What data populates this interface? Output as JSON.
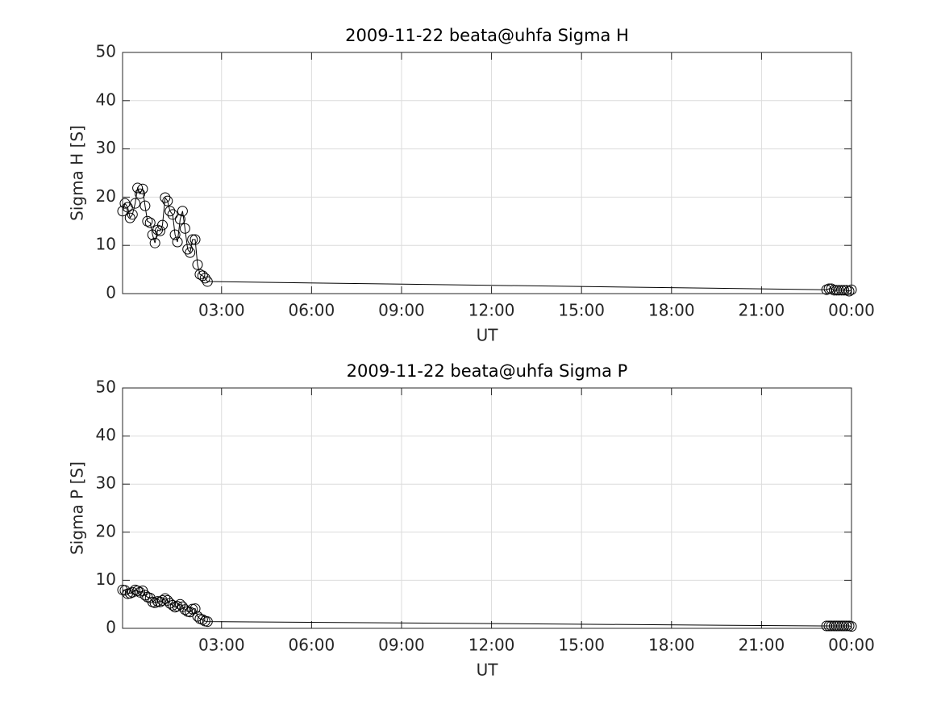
{
  "chart_data": [
    {
      "type": "line",
      "title": "2009-11-22  beata@uhfa Sigma H",
      "xlabel": "UT",
      "ylabel": "Sigma H [S]",
      "x": [
        -0.3,
        -0.22,
        -0.13,
        -0.05,
        0.03,
        0.12,
        0.2,
        0.28,
        0.37,
        0.45,
        0.53,
        0.62,
        0.7,
        0.78,
        0.87,
        0.95,
        1.03,
        1.12,
        1.2,
        1.28,
        1.37,
        1.45,
        1.53,
        1.62,
        1.7,
        1.78,
        1.87,
        1.95,
        2.03,
        2.12,
        2.2,
        2.28,
        2.37,
        2.45,
        2.53,
        23.17,
        23.25,
        23.33,
        23.42,
        23.5,
        23.58,
        23.67,
        23.75,
        23.83,
        23.92,
        24
      ],
      "values": [
        17.1,
        18.7,
        17.9,
        15.7,
        16.4,
        18.7,
        21.9,
        20.7,
        21.7,
        18.2,
        15.0,
        14.7,
        12.2,
        10.5,
        13.2,
        13.0,
        14.2,
        19.9,
        19.2,
        17.1,
        16.4,
        12.2,
        10.7,
        15.4,
        17.1,
        13.5,
        9.2,
        8.5,
        11.2,
        11.2,
        6.0,
        4.0,
        3.7,
        3.2,
        2.5,
        0.8,
        1.0,
        1.0,
        0.7,
        0.7,
        0.7,
        0.7,
        0.7,
        0.7,
        0.5,
        0.8
      ],
      "color": "#000000",
      "marker": "circle",
      "xlim": [
        -0.3,
        24
      ],
      "xticks": [
        {
          "value": 3,
          "label": "03:00"
        },
        {
          "value": 6,
          "label": "06:00"
        },
        {
          "value": 9,
          "label": "09:00"
        },
        {
          "value": 12,
          "label": "12:00"
        },
        {
          "value": 15,
          "label": "15:00"
        },
        {
          "value": 18,
          "label": "18:00"
        },
        {
          "value": 21,
          "label": "21:00"
        },
        {
          "value": 24,
          "label": "00:00"
        }
      ],
      "ylim": [
        0,
        50
      ],
      "yticks": [
        0,
        10,
        20,
        30,
        40,
        50
      ],
      "grid": true
    },
    {
      "type": "line",
      "title": "2009-11-22  beata@uhfa Sigma P",
      "xlabel": "UT",
      "ylabel": "Sigma P [S]",
      "x": [
        -0.3,
        -0.22,
        -0.13,
        -0.05,
        0.03,
        0.12,
        0.2,
        0.28,
        0.37,
        0.45,
        0.53,
        0.62,
        0.7,
        0.78,
        0.87,
        0.95,
        1.03,
        1.12,
        1.2,
        1.28,
        1.37,
        1.45,
        1.53,
        1.62,
        1.7,
        1.78,
        1.87,
        1.95,
        2.03,
        2.12,
        2.2,
        2.28,
        2.37,
        2.45,
        2.53,
        23.17,
        23.25,
        23.33,
        23.42,
        23.5,
        23.58,
        23.67,
        23.75,
        23.83,
        23.92,
        24
      ],
      "values": [
        8.0,
        7.9,
        7.2,
        7.3,
        7.5,
        8.0,
        7.8,
        7.5,
        7.8,
        6.9,
        6.5,
        6.3,
        5.5,
        5.3,
        5.6,
        5.5,
        5.8,
        6.2,
        5.8,
        5.2,
        4.8,
        4.4,
        4.6,
        5.0,
        4.5,
        3.9,
        3.5,
        3.4,
        4.0,
        4.1,
        2.5,
        2.0,
        1.8,
        1.5,
        1.4,
        0.5,
        0.5,
        0.5,
        0.5,
        0.5,
        0.5,
        0.5,
        0.5,
        0.5,
        0.5,
        0.4
      ],
      "color": "#000000",
      "marker": "circle",
      "xlim": [
        -0.3,
        24
      ],
      "xticks": [
        {
          "value": 3,
          "label": "03:00"
        },
        {
          "value": 6,
          "label": "06:00"
        },
        {
          "value": 9,
          "label": "09:00"
        },
        {
          "value": 12,
          "label": "12:00"
        },
        {
          "value": 15,
          "label": "15:00"
        },
        {
          "value": 18,
          "label": "18:00"
        },
        {
          "value": 21,
          "label": "21:00"
        },
        {
          "value": 24,
          "label": "00:00"
        }
      ],
      "ylim": [
        0,
        50
      ],
      "yticks": [
        0,
        10,
        20,
        30,
        40,
        50
      ],
      "grid": true
    }
  ]
}
